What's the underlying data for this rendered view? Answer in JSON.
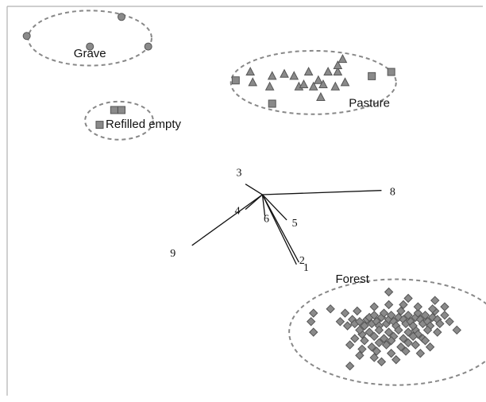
{
  "chart_data": {
    "type": "scatter",
    "title": "",
    "xlabel": "",
    "ylabel": "",
    "grid": false,
    "legend": "none",
    "marker_colors": {
      "fill": "#8a8a8a",
      "stroke": "#555555",
      "ellipse": "#888888",
      "vector": "#111111"
    },
    "groups": [
      {
        "name": "Grave",
        "marker": "circle",
        "points": [
          [
            -9.45,
            9.15
          ],
          [
            -7.5,
            9.6
          ],
          [
            -8.15,
            8.9
          ],
          [
            -6.95,
            8.9
          ]
        ]
      },
      {
        "name": "Pasture",
        "marker": "triangle",
        "points": [
          [
            -4.85,
            8.3
          ],
          [
            -4.4,
            8.2
          ],
          [
            -4.8,
            8.05
          ],
          [
            -4.45,
            7.95
          ],
          [
            -4.15,
            8.25
          ],
          [
            -3.95,
            8.2
          ],
          [
            -3.85,
            7.95
          ],
          [
            -3.65,
            8.3
          ],
          [
            -3.75,
            8.0
          ],
          [
            -3.55,
            7.95
          ],
          [
            -3.45,
            8.1
          ],
          [
            -3.25,
            8.3
          ],
          [
            -3.05,
            8.3
          ],
          [
            -2.95,
            8.6
          ],
          [
            -3.35,
            8.0
          ],
          [
            -3.1,
            7.95
          ],
          [
            -2.9,
            8.05
          ],
          [
            -3.05,
            8.45
          ],
          [
            -3.4,
            7.7
          ]
        ]
      },
      {
        "name": "Pasture",
        "marker": "square",
        "points": [
          [
            -5.15,
            8.1
          ],
          [
            -2.35,
            8.2
          ],
          [
            -1.95,
            8.3
          ],
          [
            -4.4,
            7.55
          ]
        ]
      },
      {
        "name": "Refilled empty",
        "marker": "square",
        "points": [
          [
            -7.65,
            7.4
          ],
          [
            -7.5,
            7.4
          ],
          [
            -7.95,
            7.05
          ]
        ]
      },
      {
        "name": "Forest",
        "marker": "diamond",
        "points": [
          [
            -3.55,
            2.6
          ],
          [
            -3.2,
            2.7
          ],
          [
            -3.55,
            2.15
          ],
          [
            -2.55,
            2.1
          ],
          [
            -1.45,
            2.2
          ],
          [
            -2.75,
            2.45
          ],
          [
            -2.7,
            2.35
          ],
          [
            -2.6,
            2.4
          ],
          [
            -2.5,
            2.3
          ],
          [
            -2.45,
            2.45
          ],
          [
            -2.4,
            2.5
          ],
          [
            -2.35,
            2.35
          ],
          [
            -2.3,
            2.55
          ],
          [
            -2.25,
            2.4
          ],
          [
            -2.2,
            2.3
          ],
          [
            -2.15,
            2.5
          ],
          [
            -2.1,
            2.6
          ],
          [
            -2.05,
            2.35
          ],
          [
            -2.0,
            2.45
          ],
          [
            -1.95,
            2.55
          ],
          [
            -1.9,
            2.4
          ],
          [
            -1.85,
            2.3
          ],
          [
            -1.8,
            2.5
          ],
          [
            -1.75,
            2.65
          ],
          [
            -1.7,
            2.45
          ],
          [
            -1.65,
            2.35
          ],
          [
            -1.6,
            2.55
          ],
          [
            -1.55,
            2.4
          ],
          [
            -1.5,
            2.3
          ],
          [
            -1.45,
            2.5
          ],
          [
            -1.4,
            2.6
          ],
          [
            -1.35,
            2.45
          ],
          [
            -1.3,
            2.35
          ],
          [
            -1.25,
            2.55
          ],
          [
            -1.2,
            2.4
          ],
          [
            -1.15,
            2.3
          ],
          [
            -1.1,
            2.5
          ],
          [
            -1.05,
            2.65
          ],
          [
            -1.0,
            2.45
          ],
          [
            -0.95,
            2.35
          ],
          [
            -2.6,
            2.2
          ],
          [
            -2.4,
            2.15
          ],
          [
            -2.2,
            2.2
          ],
          [
            -2.0,
            2.15
          ],
          [
            -1.8,
            2.2
          ],
          [
            -1.6,
            2.15
          ],
          [
            -1.4,
            2.1
          ],
          [
            -1.2,
            2.2
          ],
          [
            -1.0,
            2.15
          ],
          [
            -2.3,
            2.05
          ],
          [
            -2.1,
            2.0
          ],
          [
            -1.9,
            2.05
          ],
          [
            -1.7,
            2.0
          ],
          [
            -1.5,
            2.05
          ],
          [
            -1.3,
            2.0
          ],
          [
            -2.5,
            1.95
          ],
          [
            -2.2,
            1.9
          ],
          [
            -1.95,
            1.95
          ],
          [
            -1.6,
            1.9
          ],
          [
            -1.25,
            1.95
          ],
          [
            -2.35,
            1.8
          ],
          [
            -2.05,
            1.85
          ],
          [
            -1.75,
            1.8
          ],
          [
            -1.45,
            1.85
          ],
          [
            -1.15,
            1.8
          ],
          [
            -2.7,
            2.0
          ],
          [
            -2.85,
            2.3
          ],
          [
            -3.0,
            2.4
          ],
          [
            -2.9,
            2.6
          ],
          [
            -2.65,
            2.65
          ],
          [
            -2.3,
            2.75
          ],
          [
            -2.0,
            2.8
          ],
          [
            -1.7,
            2.8
          ],
          [
            -1.4,
            2.75
          ],
          [
            -1.1,
            2.7
          ],
          [
            -0.85,
            2.55
          ],
          [
            -0.75,
            2.4
          ],
          [
            -0.6,
            2.2
          ],
          [
            -2.8,
            1.85
          ],
          [
            -2.55,
            1.75
          ],
          [
            -2.25,
            1.7
          ],
          [
            -1.95,
            1.65
          ],
          [
            -1.65,
            1.7
          ],
          [
            -1.35,
            1.65
          ],
          [
            -3.6,
            2.4
          ],
          [
            -2.0,
            3.1
          ],
          [
            -2.3,
            1.55
          ],
          [
            -2.15,
            1.45
          ],
          [
            -1.85,
            1.5
          ],
          [
            -2.6,
            1.6
          ],
          [
            -1.6,
            2.95
          ],
          [
            -1.05,
            2.9
          ],
          [
            -0.85,
            2.75
          ],
          [
            -2.8,
            1.35
          ]
        ]
      }
    ],
    "ellipses": [
      {
        "label": "Grave",
        "cx": -8.15,
        "cy": 9.1,
        "rx": 1.27,
        "ry": 0.65
      },
      {
        "label": "Pasture",
        "cx": -3.55,
        "cy": 8.05,
        "rx": 1.7,
        "ry": 0.75
      },
      {
        "label": "Refilled empty",
        "cx": -7.55,
        "cy": 7.15,
        "rx": 0.7,
        "ry": 0.45
      },
      {
        "label": "Forest",
        "cx": -1.85,
        "cy": 2.15,
        "rx": 2.2,
        "ry": 1.25
      }
    ],
    "vectors": {
      "origin": [
        -4.6,
        5.4
      ],
      "items": [
        {
          "label": "1",
          "x": -3.9,
          "y": 3.75
        },
        {
          "label": "2",
          "x": -3.85,
          "y": 3.8
        },
        {
          "label": "3",
          "x": -4.95,
          "y": 5.65
        },
        {
          "label": "4",
          "x": -4.95,
          "y": 5.05
        },
        {
          "label": "5",
          "x": -4.1,
          "y": 4.8
        },
        {
          "label": "6",
          "x": -4.55,
          "y": 4.9
        },
        {
          "label": "8",
          "x": -2.15,
          "y": 5.5
        },
        {
          "label": "9",
          "x": -6.05,
          "y": 4.2
        }
      ]
    },
    "xlim": [
      -10.0,
      0.0
    ],
    "ylim": [
      0.5,
      10.0
    ]
  }
}
